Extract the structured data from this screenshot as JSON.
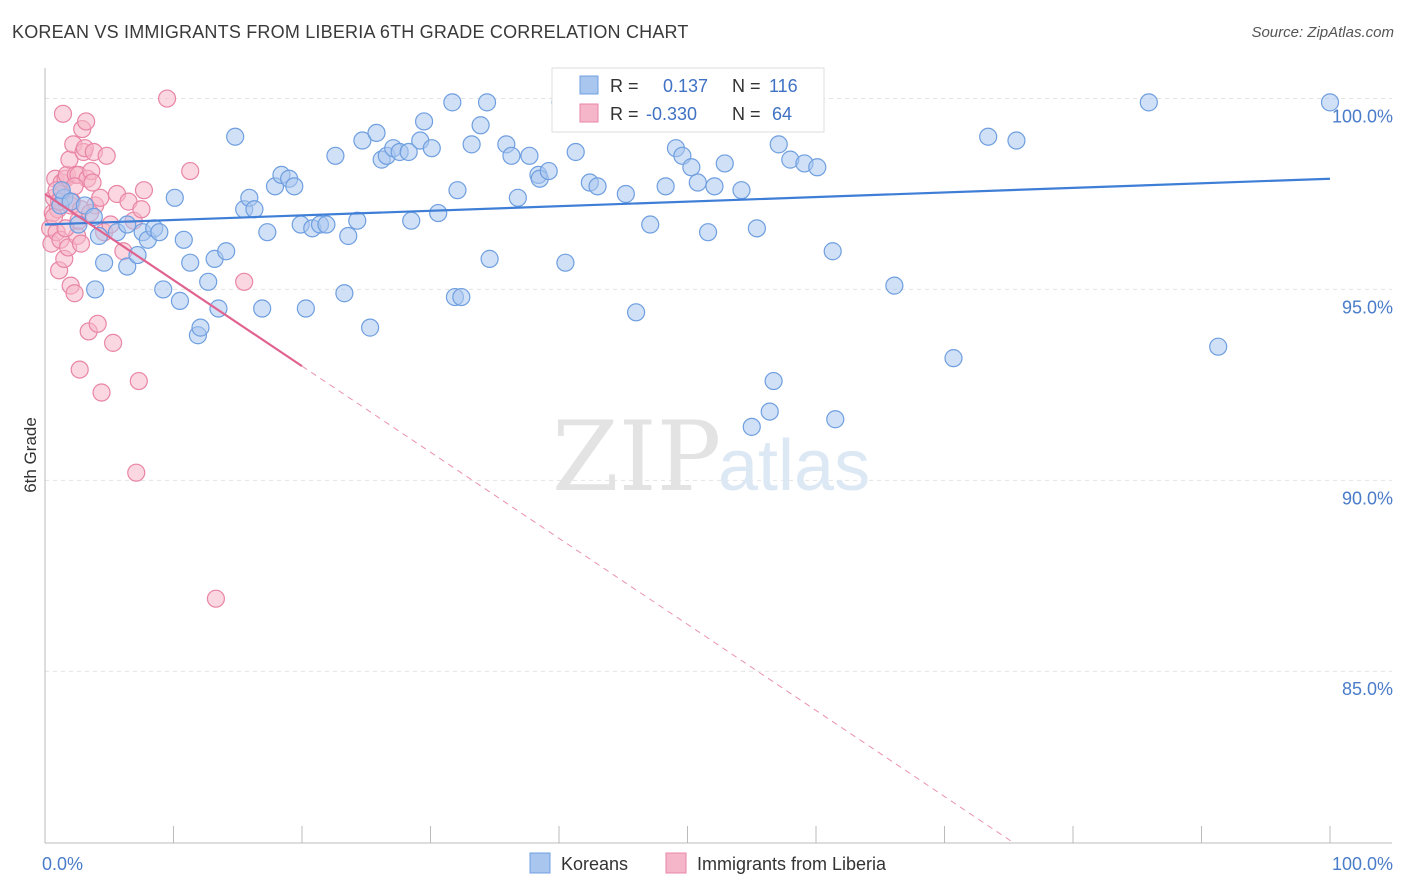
{
  "title": "KOREAN VS IMMIGRANTS FROM LIBERIA 6TH GRADE CORRELATION CHART",
  "source": "Source: ZipAtlas.com",
  "watermark": {
    "zip": "ZIP",
    "atlas": "atlas"
  },
  "colors": {
    "korean_fill": "#a9c6ef",
    "korean_stroke": "#6f9fe0",
    "korean_line": "#3f7ed6",
    "liberia_fill": "#f5b6c9",
    "liberia_stroke": "#e985a5",
    "liberia_line": "#e0628f",
    "grid": "#e2e2e2",
    "tick_text": "#4a7cc9"
  },
  "stats_box": {
    "rows": [
      {
        "r_label": "R = ",
        "r_value": "0.137",
        "n_label": "N = ",
        "n_value": "116"
      },
      {
        "r_label": "R = ",
        "r_value": "-0.330",
        "n_label": "N = ",
        "n_value": "64"
      }
    ]
  },
  "chart_data": {
    "type": "scatter",
    "title": "KOREAN VS IMMIGRANTS FROM LIBERIA 6TH GRADE CORRELATION CHART",
    "xlabel": "",
    "ylabel": "6th Grade",
    "xlim": [
      0,
      100
    ],
    "ylim": [
      80.5,
      100.8
    ],
    "x_tick_labels": [
      {
        "value": 0,
        "label": "0.0%"
      },
      {
        "value": 100,
        "label": "100.0%"
      }
    ],
    "y_tick_labels": [
      {
        "value": 100,
        "label": "100.0%"
      },
      {
        "value": 95,
        "label": "95.0%"
      },
      {
        "value": 90,
        "label": "90.0%"
      },
      {
        "value": 85,
        "label": "85.0%"
      }
    ],
    "grid": true,
    "legend_position": "bottom",
    "series": [
      {
        "name": "Koreans",
        "r": 0.137,
        "n": 116,
        "trend": {
          "x0": 0,
          "y0": 96.7,
          "x1": 100,
          "y1": 97.9,
          "dashed_from": null
        },
        "points": [
          [
            1.2,
            97.2
          ],
          [
            1.5,
            97.4
          ],
          [
            1.3,
            97.6
          ],
          [
            2.0,
            97.3
          ],
          [
            2.6,
            96.7
          ],
          [
            3.1,
            97.2
          ],
          [
            3.8,
            96.9
          ],
          [
            4.2,
            96.4
          ],
          [
            4.6,
            95.7
          ],
          [
            3.9,
            95.0
          ],
          [
            5.6,
            96.5
          ],
          [
            6.4,
            96.7
          ],
          [
            6.4,
            95.6
          ],
          [
            7.2,
            95.9
          ],
          [
            7.6,
            96.5
          ],
          [
            8.0,
            96.3
          ],
          [
            8.5,
            96.6
          ],
          [
            8.9,
            96.5
          ],
          [
            9.2,
            95.0
          ],
          [
            10.1,
            97.4
          ],
          [
            10.5,
            94.7
          ],
          [
            10.8,
            96.3
          ],
          [
            11.3,
            95.7
          ],
          [
            11.9,
            93.8
          ],
          [
            12.1,
            94.0
          ],
          [
            12.7,
            95.2
          ],
          [
            13.2,
            95.8
          ],
          [
            13.5,
            94.5
          ],
          [
            14.1,
            96.0
          ],
          [
            14.8,
            99.0
          ],
          [
            15.5,
            97.1
          ],
          [
            15.9,
            97.4
          ],
          [
            16.3,
            97.1
          ],
          [
            16.9,
            94.5
          ],
          [
            17.3,
            96.5
          ],
          [
            17.9,
            97.7
          ],
          [
            18.4,
            98.0
          ],
          [
            19.0,
            97.9
          ],
          [
            19.4,
            97.7
          ],
          [
            19.9,
            96.7
          ],
          [
            20.3,
            94.5
          ],
          [
            20.8,
            96.6
          ],
          [
            21.4,
            96.7
          ],
          [
            21.9,
            96.7
          ],
          [
            22.6,
            98.5
          ],
          [
            23.3,
            94.9
          ],
          [
            23.6,
            96.4
          ],
          [
            24.3,
            96.8
          ],
          [
            24.7,
            98.9
          ],
          [
            25.3,
            94.0
          ],
          [
            25.8,
            99.1
          ],
          [
            26.2,
            98.4
          ],
          [
            26.6,
            98.5
          ],
          [
            27.1,
            98.7
          ],
          [
            27.6,
            98.6
          ],
          [
            28.3,
            98.6
          ],
          [
            28.5,
            96.8
          ],
          [
            29.2,
            98.9
          ],
          [
            29.5,
            99.4
          ],
          [
            30.1,
            98.7
          ],
          [
            30.6,
            97.0
          ],
          [
            31.7,
            99.9
          ],
          [
            31.9,
            94.8
          ],
          [
            32.4,
            94.8
          ],
          [
            32.1,
            97.6
          ],
          [
            33.2,
            98.8
          ],
          [
            33.9,
            99.3
          ],
          [
            34.4,
            99.9
          ],
          [
            34.6,
            95.8
          ],
          [
            35.9,
            98.8
          ],
          [
            36.3,
            98.5
          ],
          [
            36.8,
            97.4
          ],
          [
            37.7,
            98.5
          ],
          [
            38.4,
            98.0
          ],
          [
            38.5,
            97.9
          ],
          [
            39.2,
            98.1
          ],
          [
            40.1,
            99.9
          ],
          [
            40.5,
            95.7
          ],
          [
            41.3,
            98.6
          ],
          [
            42.4,
            97.8
          ],
          [
            43.0,
            97.7
          ],
          [
            43.9,
            99.9
          ],
          [
            45.2,
            97.5
          ],
          [
            46.0,
            94.4
          ],
          [
            46.7,
            99.6
          ],
          [
            47.1,
            96.7
          ],
          [
            48.3,
            97.7
          ],
          [
            48.5,
            99.9
          ],
          [
            49.1,
            98.7
          ],
          [
            49.6,
            98.5
          ],
          [
            50.3,
            98.2
          ],
          [
            50.8,
            97.8
          ],
          [
            51.6,
            96.5
          ],
          [
            52.1,
            97.7
          ],
          [
            52.9,
            98.3
          ],
          [
            53.4,
            99.9
          ],
          [
            54.2,
            97.6
          ],
          [
            55.0,
            91.4
          ],
          [
            55.4,
            96.6
          ],
          [
            56.4,
            91.8
          ],
          [
            56.7,
            92.6
          ],
          [
            57.1,
            98.8
          ],
          [
            58.0,
            98.4
          ],
          [
            59.1,
            98.3
          ],
          [
            60.1,
            98.2
          ],
          [
            61.3,
            96.0
          ],
          [
            61.5,
            91.6
          ],
          [
            66.1,
            95.1
          ],
          [
            70.7,
            93.2
          ],
          [
            73.4,
            99.0
          ],
          [
            75.6,
            98.9
          ],
          [
            85.9,
            99.9
          ],
          [
            91.3,
            93.5
          ],
          [
            100.0,
            99.9
          ]
        ]
      },
      {
        "name": "Immigrants from Liberia",
        "r": -0.33,
        "n": 64,
        "trend": {
          "x0": 0,
          "y0": 97.5,
          "x1": 75.4,
          "y1": 80.5,
          "dashed_from": 20
        },
        "points": [
          [
            0.4,
            96.6
          ],
          [
            0.5,
            96.2
          ],
          [
            0.6,
            97.0
          ],
          [
            0.7,
            97.4
          ],
          [
            0.8,
            97.9
          ],
          [
            0.9,
            96.5
          ],
          [
            1.0,
            97.1
          ],
          [
            1.1,
            95.5
          ],
          [
            1.2,
            96.3
          ],
          [
            1.3,
            97.8
          ],
          [
            1.4,
            99.6
          ],
          [
            1.5,
            95.8
          ],
          [
            1.6,
            97.9
          ],
          [
            1.7,
            98.0
          ],
          [
            1.8,
            96.1
          ],
          [
            1.9,
            98.4
          ],
          [
            2.0,
            95.1
          ],
          [
            2.1,
            97.3
          ],
          [
            2.2,
            98.8
          ],
          [
            2.3,
            94.9
          ],
          [
            2.4,
            98.0
          ],
          [
            2.5,
            96.4
          ],
          [
            2.6,
            98.0
          ],
          [
            2.7,
            92.9
          ],
          [
            2.8,
            96.2
          ],
          [
            2.9,
            99.2
          ],
          [
            3.0,
            98.6
          ],
          [
            3.1,
            98.7
          ],
          [
            3.2,
            99.4
          ],
          [
            3.3,
            97.9
          ],
          [
            3.4,
            93.9
          ],
          [
            3.6,
            98.1
          ],
          [
            3.7,
            97.8
          ],
          [
            3.8,
            98.6
          ],
          [
            3.9,
            97.2
          ],
          [
            4.1,
            94.1
          ],
          [
            4.3,
            97.4
          ],
          [
            4.4,
            92.3
          ],
          [
            4.6,
            96.5
          ],
          [
            4.8,
            98.5
          ],
          [
            5.1,
            96.7
          ],
          [
            5.3,
            93.6
          ],
          [
            5.6,
            97.5
          ],
          [
            6.1,
            96.0
          ],
          [
            6.5,
            97.3
          ],
          [
            6.9,
            96.8
          ],
          [
            7.3,
            92.6
          ],
          [
            7.5,
            97.1
          ],
          [
            7.7,
            97.6
          ],
          [
            7.1,
            90.2
          ],
          [
            9.5,
            100.0
          ],
          [
            11.3,
            98.1
          ],
          [
            13.3,
            86.9
          ],
          [
            15.5,
            95.2
          ],
          [
            0.7,
            96.9
          ],
          [
            1.3,
            97.5
          ],
          [
            2.0,
            97.2
          ],
          [
            2.6,
            96.8
          ],
          [
            0.9,
            97.6
          ],
          [
            1.6,
            96.6
          ],
          [
            2.3,
            97.7
          ],
          [
            1.1,
            97.3
          ],
          [
            2.8,
            97.1
          ],
          [
            3.5,
            97.0
          ]
        ]
      }
    ]
  }
}
